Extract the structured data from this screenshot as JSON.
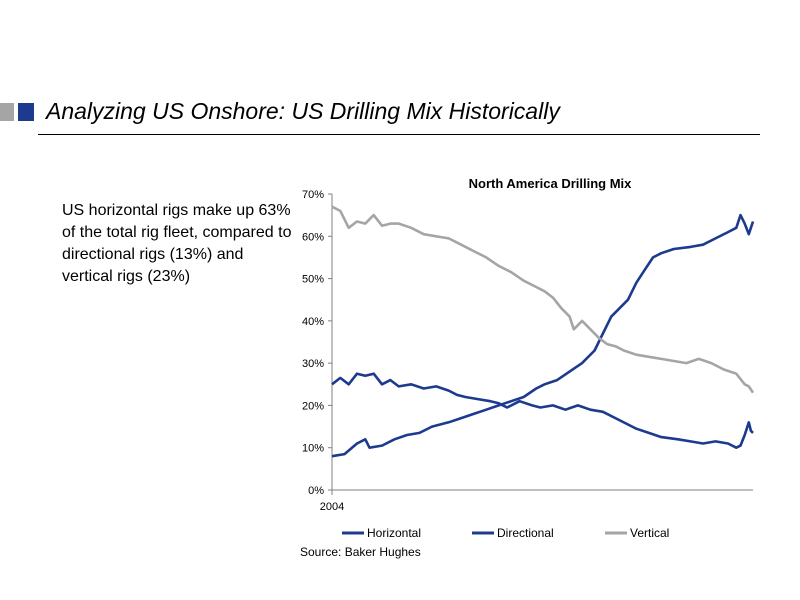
{
  "slide": {
    "title": "Analyzing US Onshore: US Drilling Mix Historically",
    "body": "US horizontal rigs make up 63% of the total rig fleet, compared to directional rigs (13%) and vertical rigs (23%)",
    "source": "Source: Baker Hughes"
  },
  "colors": {
    "accent_blue": "#1c3a8e",
    "accent_grey": "#a5a5a5"
  },
  "chart_data": {
    "type": "line",
    "title": "North America Drilling Mix",
    "xlabel": "",
    "ylabel": "",
    "x_tick_labels": [
      "2004"
    ],
    "x_range": [
      2004,
      2014.1
    ],
    "ylim": [
      0,
      70
    ],
    "y_ticks": [
      "0%",
      "10%",
      "20%",
      "30%",
      "40%",
      "50%",
      "60%",
      "70%"
    ],
    "grid": false,
    "legend_position": "bottom",
    "series": [
      {
        "name": "Horizontal",
        "color": "#1c3a8e",
        "points": [
          [
            2004.0,
            8
          ],
          [
            2004.3,
            8.5
          ],
          [
            2004.6,
            11
          ],
          [
            2004.8,
            12
          ],
          [
            2004.9,
            10
          ],
          [
            2005.2,
            10.5
          ],
          [
            2005.5,
            12
          ],
          [
            2005.8,
            13
          ],
          [
            2006.1,
            13.5
          ],
          [
            2006.4,
            15
          ],
          [
            2006.8,
            16
          ],
          [
            2007.1,
            17
          ],
          [
            2007.4,
            18
          ],
          [
            2007.7,
            19
          ],
          [
            2008.0,
            20
          ],
          [
            2008.3,
            21
          ],
          [
            2008.6,
            22
          ],
          [
            2008.9,
            24
          ],
          [
            2009.1,
            25
          ],
          [
            2009.4,
            26
          ],
          [
            2009.7,
            28
          ],
          [
            2010.0,
            30
          ],
          [
            2010.3,
            33
          ],
          [
            2010.5,
            37
          ],
          [
            2010.7,
            41
          ],
          [
            2010.9,
            43
          ],
          [
            2011.1,
            45
          ],
          [
            2011.3,
            49
          ],
          [
            2011.5,
            52
          ],
          [
            2011.7,
            55
          ],
          [
            2011.9,
            56
          ],
          [
            2012.2,
            57
          ],
          [
            2012.6,
            57.5
          ],
          [
            2012.9,
            58
          ],
          [
            2013.2,
            59.5
          ],
          [
            2013.5,
            61
          ],
          [
            2013.7,
            62
          ],
          [
            2013.8,
            65
          ],
          [
            2013.9,
            63
          ],
          [
            2014.0,
            60.5
          ],
          [
            2014.05,
            62
          ],
          [
            2014.1,
            63.5
          ]
        ]
      },
      {
        "name": "Directional",
        "color": "#1c3a8e",
        "points": [
          [
            2004.0,
            25
          ],
          [
            2004.2,
            26.5
          ],
          [
            2004.4,
            25
          ],
          [
            2004.6,
            27.5
          ],
          [
            2004.8,
            27
          ],
          [
            2005.0,
            27.5
          ],
          [
            2005.2,
            25
          ],
          [
            2005.4,
            26
          ],
          [
            2005.6,
            24.5
          ],
          [
            2005.9,
            25
          ],
          [
            2006.2,
            24
          ],
          [
            2006.5,
            24.5
          ],
          [
            2006.8,
            23.5
          ],
          [
            2007.0,
            22.5
          ],
          [
            2007.2,
            22
          ],
          [
            2007.5,
            21.5
          ],
          [
            2007.8,
            21
          ],
          [
            2008.0,
            20.5
          ],
          [
            2008.2,
            19.5
          ],
          [
            2008.5,
            21
          ],
          [
            2008.8,
            20
          ],
          [
            2009.0,
            19.5
          ],
          [
            2009.3,
            20
          ],
          [
            2009.6,
            19
          ],
          [
            2009.9,
            20
          ],
          [
            2010.2,
            19
          ],
          [
            2010.5,
            18.5
          ],
          [
            2010.8,
            17
          ],
          [
            2011.1,
            15.5
          ],
          [
            2011.3,
            14.5
          ],
          [
            2011.6,
            13.5
          ],
          [
            2011.9,
            12.5
          ],
          [
            2012.3,
            12
          ],
          [
            2012.6,
            11.5
          ],
          [
            2012.9,
            11
          ],
          [
            2013.2,
            11.5
          ],
          [
            2013.5,
            11
          ],
          [
            2013.7,
            10
          ],
          [
            2013.8,
            10.5
          ],
          [
            2013.9,
            13
          ],
          [
            2014.0,
            16
          ],
          [
            2014.05,
            14
          ],
          [
            2014.1,
            13.5
          ]
        ]
      },
      {
        "name": "Vertical",
        "color": "#a5a5a5",
        "points": [
          [
            2004.0,
            67
          ],
          [
            2004.2,
            66
          ],
          [
            2004.4,
            62
          ],
          [
            2004.6,
            63.5
          ],
          [
            2004.8,
            63
          ],
          [
            2005.0,
            65
          ],
          [
            2005.2,
            62.5
          ],
          [
            2005.4,
            63
          ],
          [
            2005.6,
            63
          ],
          [
            2005.9,
            62
          ],
          [
            2006.2,
            60.5
          ],
          [
            2006.5,
            60
          ],
          [
            2006.8,
            59.5
          ],
          [
            2007.1,
            58
          ],
          [
            2007.4,
            56.5
          ],
          [
            2007.7,
            55
          ],
          [
            2008.0,
            53
          ],
          [
            2008.3,
            51.5
          ],
          [
            2008.6,
            49.5
          ],
          [
            2008.9,
            48
          ],
          [
            2009.1,
            47
          ],
          [
            2009.3,
            45.5
          ],
          [
            2009.5,
            43
          ],
          [
            2009.7,
            41
          ],
          [
            2009.8,
            38
          ],
          [
            2010.0,
            40
          ],
          [
            2010.2,
            38
          ],
          [
            2010.4,
            36
          ],
          [
            2010.6,
            34.5
          ],
          [
            2010.8,
            34
          ],
          [
            2011.0,
            33
          ],
          [
            2011.3,
            32
          ],
          [
            2011.6,
            31.5
          ],
          [
            2011.9,
            31
          ],
          [
            2012.2,
            30.5
          ],
          [
            2012.5,
            30
          ],
          [
            2012.8,
            31
          ],
          [
            2013.1,
            30
          ],
          [
            2013.4,
            28.5
          ],
          [
            2013.7,
            27.5
          ],
          [
            2013.9,
            25
          ],
          [
            2014.0,
            24.5
          ],
          [
            2014.1,
            23
          ]
        ]
      }
    ]
  }
}
